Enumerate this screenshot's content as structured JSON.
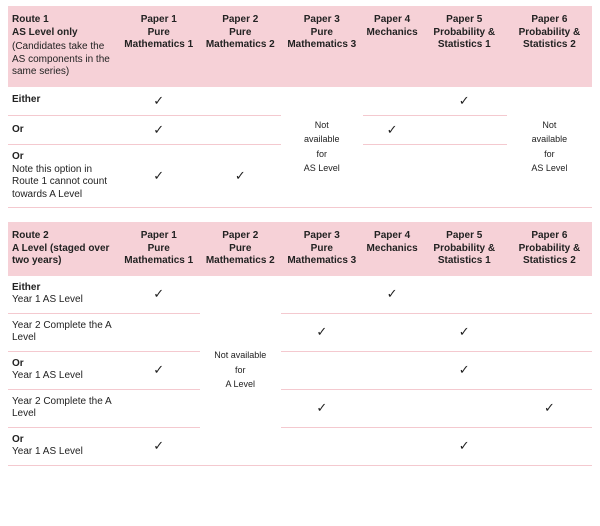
{
  "colors": {
    "header_bg": "#f6d1d7",
    "row_border": "#f4c9cf",
    "text": "#222222",
    "background": "#ffffff"
  },
  "tick_glyph": "✓",
  "table1": {
    "route_title": "Route 1",
    "route_sub1": "AS Level only",
    "route_sub2": "(Candidates take the AS components in the same series)",
    "papers": [
      {
        "num": "Paper 1",
        "name": "Pure Mathematics 1"
      },
      {
        "num": "Paper 2",
        "name": "Pure Mathematics 2"
      },
      {
        "num": "Paper 3",
        "name": "Pure Mathematics 3"
      },
      {
        "num": "Paper 4",
        "name": "Mechanics"
      },
      {
        "num": "Paper 5",
        "name": "Probability & Statistics 1"
      },
      {
        "num": "Paper 6",
        "name": "Probability & Statistics 2"
      }
    ],
    "na_text": "Not\navailable\nfor\nAS Level",
    "rows": [
      {
        "label": "Either",
        "sub": "",
        "p1": true,
        "p2": false,
        "p4": false,
        "p5": true
      },
      {
        "label": "Or",
        "sub": "",
        "p1": true,
        "p2": false,
        "p4": true,
        "p5": false
      },
      {
        "label": "Or",
        "sub": "Note this option in Route 1 cannot count towards A Level",
        "p1": true,
        "p2": true,
        "p4": false,
        "p5": false
      }
    ]
  },
  "table2": {
    "route_title": "Route 2",
    "route_sub1": "A Level (staged over two years)",
    "papers": [
      {
        "num": "Paper 1",
        "name": "Pure Mathematics 1"
      },
      {
        "num": "Paper 2",
        "name": "Pure Mathematics 2"
      },
      {
        "num": "Paper 3",
        "name": "Pure Mathematics 3"
      },
      {
        "num": "Paper 4",
        "name": "Mechanics"
      },
      {
        "num": "Paper 5",
        "name": "Probability & Statistics 1"
      },
      {
        "num": "Paper 6",
        "name": "Probability & Statistics 2"
      }
    ],
    "na_text": "Not available\nfor\nA Level",
    "rows": [
      {
        "label": "Either",
        "sub": "Year 1 AS Level",
        "p1": true,
        "p3": false,
        "p4": true,
        "p5": false,
        "p6": false
      },
      {
        "label": "",
        "sub": "Year 2 Complete the A Level",
        "p1": false,
        "p3": true,
        "p4": false,
        "p5": true,
        "p6": false
      },
      {
        "label": "Or",
        "sub": "Year 1 AS Level",
        "p1": true,
        "p3": false,
        "p4": false,
        "p5": true,
        "p6": false
      },
      {
        "label": "",
        "sub": "Year 2 Complete the A Level",
        "p1": false,
        "p3": true,
        "p4": false,
        "p5": false,
        "p6": true
      },
      {
        "label": "Or",
        "sub": "Year 1 AS Level",
        "p1": true,
        "p3": false,
        "p4": false,
        "p5": true,
        "p6": false
      }
    ]
  }
}
